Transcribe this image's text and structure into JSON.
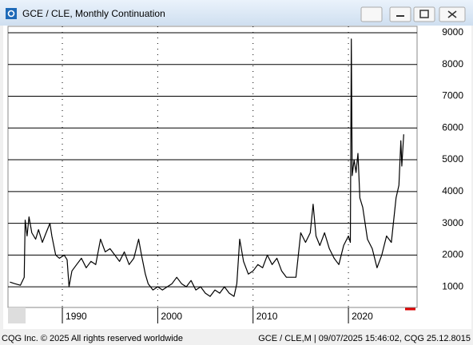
{
  "chart_data": {
    "type": "line",
    "title": "GCE / CLE, Monthly Continuation",
    "copyright": "CQG Inc. © 2025 All rights reserved worldwide",
    "status": "GCE / CLE,M | 09/07/2025 15:46:02, CQG 25.12.8015",
    "color": "#000000",
    "x": [
      1984.5,
      1985,
      1985.6,
      1986.0,
      1986.1,
      1986.3,
      1986.5,
      1986.8,
      1987.2,
      1987.5,
      1987.9,
      1988.3,
      1988.7,
      1988.9,
      1989.3,
      1989.7,
      1990.2,
      1990.5,
      1990.7,
      1991,
      1991.5,
      1992,
      1992.5,
      1993,
      1993.5,
      1994,
      1994.5,
      1995,
      1995.5,
      1996,
      1996.5,
      1997,
      1997.5,
      1998,
      1998.3,
      1998.7,
      1999,
      1999.5,
      2000,
      2000.5,
      2001,
      2001.5,
      2002,
      2002.5,
      2003,
      2003.5,
      2004,
      2004.5,
      2005,
      2005.5,
      2006,
      2006.5,
      2007,
      2007.5,
      2008,
      2008.3,
      2008.6,
      2009,
      2009.5,
      2010,
      2010.5,
      2011,
      2011.5,
      2012,
      2012.5,
      2013,
      2013.5,
      2014,
      2014.5,
      2015,
      2015.5,
      2016,
      2016.3,
      2016.6,
      2017,
      2017.5,
      2018,
      2018.5,
      2019,
      2019.5,
      2020,
      2020.2,
      2020.3,
      2020.4,
      2020.6,
      2020.8,
      2021,
      2021.2,
      2021.5,
      2022,
      2022.5,
      2023,
      2023.5,
      2024,
      2024.5,
      2025,
      2025.3,
      2025.5,
      2025.6,
      2025.8
    ],
    "values": [
      1150,
      1100,
      1050,
      1300,
      3100,
      2600,
      3200,
      2700,
      2500,
      2800,
      2400,
      2700,
      3000,
      2600,
      2000,
      1900,
      2000,
      1850,
      1000,
      1500,
      1700,
      1900,
      1600,
      1800,
      1700,
      2500,
      2100,
      2200,
      2000,
      1800,
      2100,
      1700,
      1900,
      2500,
      2000,
      1400,
      1100,
      900,
      1000,
      900,
      1000,
      1100,
      1300,
      1100,
      1000,
      1200,
      900,
      1000,
      800,
      700,
      900,
      800,
      1000,
      800,
      700,
      1100,
      2500,
      1800,
      1400,
      1500,
      1700,
      1600,
      2000,
      1700,
      1900,
      1500,
      1300,
      1300,
      1300,
      2700,
      2400,
      2700,
      3600,
      2600,
      2300,
      2700,
      2200,
      1900,
      1700,
      2300,
      2600,
      2400,
      8800,
      4500,
      5000,
      4600,
      5200,
      3800,
      3500,
      2500,
      2200,
      1600,
      2000,
      2600,
      2400,
      3800,
      4200,
      5600,
      4800,
      5800
    ],
    "xlim": [
      1984.3,
      2027.2
    ],
    "xticks": [
      1990,
      2000,
      2010,
      2020
    ],
    "ylim": [
      350,
      9200
    ],
    "yticks": [
      1000,
      2000,
      3000,
      4000,
      5000,
      6000,
      7000,
      8000,
      9000
    ],
    "grid": true
  }
}
